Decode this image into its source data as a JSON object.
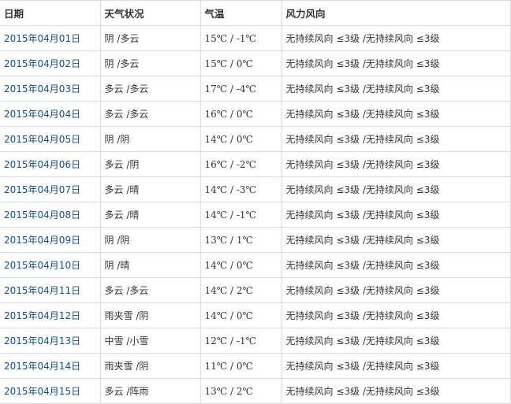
{
  "headers": [
    "日期",
    "天气状况",
    "气温",
    "风力风向"
  ],
  "rows": [
    {
      "date": "2015年04月01日",
      "weather": "阴 /多云",
      "temp": "15℃ / -1℃",
      "wind": "无持续风向 ≤3级 /无持续风向 ≤3级"
    },
    {
      "date": "2015年04月02日",
      "weather": "阴 /多云",
      "temp": "15℃ / 0℃",
      "wind": "无持续风向 ≤3级 /无持续风向 ≤3级"
    },
    {
      "date": "2015年04月03日",
      "weather": "多云 /多云",
      "temp": "17℃ / -4℃",
      "wind": "无持续风向 ≤3级 /无持续风向 ≤3级"
    },
    {
      "date": "2015年04月04日",
      "weather": "多云 /多云",
      "temp": "16℃ / 0℃",
      "wind": "无持续风向 ≤3级 /无持续风向 ≤3级"
    },
    {
      "date": "2015年04月05日",
      "weather": "阴 /阴",
      "temp": "14℃ / 0℃",
      "wind": "无持续风向 ≤3级 /无持续风向 ≤3级"
    },
    {
      "date": "2015年04月06日",
      "weather": "多云 /阴",
      "temp": "16℃ / -2℃",
      "wind": "无持续风向 ≤3级 /无持续风向 ≤3级"
    },
    {
      "date": "2015年04月07日",
      "weather": "多云 /晴",
      "temp": "14℃ / -3℃",
      "wind": "无持续风向 ≤3级 /无持续风向 ≤3级"
    },
    {
      "date": "2015年04月08日",
      "weather": "多云 /晴",
      "temp": "14℃ / -1℃",
      "wind": "无持续风向 ≤3级 /无持续风向 ≤3级"
    },
    {
      "date": "2015年04月09日",
      "weather": "阴 /阴",
      "temp": "13℃ / 1℃",
      "wind": "无持续风向 ≤3级 /无持续风向 ≤3级"
    },
    {
      "date": "2015年04月10日",
      "weather": "阴 /晴",
      "temp": "14℃ / 0℃",
      "wind": "无持续风向 ≤3级 /无持续风向 ≤3级"
    },
    {
      "date": "2015年04月11日",
      "weather": "多云 /多云",
      "temp": "14℃ / 2℃",
      "wind": "无持续风向 ≤3级 /无持续风向 ≤3级"
    },
    {
      "date": "2015年04月12日",
      "weather": "雨夹雪 /阴",
      "temp": "14℃ / 0℃",
      "wind": "无持续风向 ≤3级 /无持续风向 ≤3级"
    },
    {
      "date": "2015年04月13日",
      "weather": "中雪 /小雪",
      "temp": "12℃ / -1℃",
      "wind": "无持续风向 ≤3级 /无持续风向 ≤3级"
    },
    {
      "date": "2015年04月14日",
      "weather": "雨夹雪 /阴",
      "temp": "11℃ / 0℃",
      "wind": "无持续风向 ≤3级 /无持续风向 ≤3级"
    },
    {
      "date": "2015年04月15日",
      "weather": "多云 /阵雨",
      "temp": "13℃ / 2℃",
      "wind": "无持续风向 ≤3级 /无持续风向 ≤3级"
    }
  ]
}
